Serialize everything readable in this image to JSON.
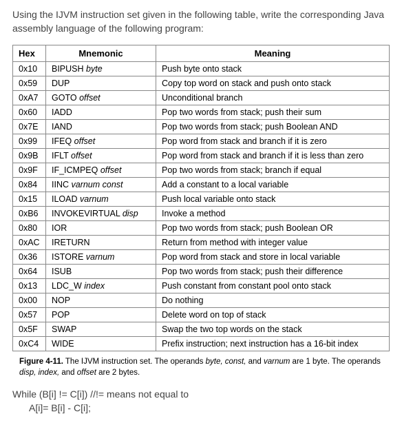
{
  "question": "Using the IJVM instruction set given in the following table, write the corresponding Java assembly language of the following program:",
  "table": {
    "headers": {
      "hex": "Hex",
      "mnemonic": "Mnemonic",
      "meaning": "Meaning"
    },
    "rows": [
      {
        "hex": "0x10",
        "mnemonic_pre": "BIPUSH ",
        "mnemonic_op": "byte",
        "meaning": "Push byte onto stack"
      },
      {
        "hex": "0x59",
        "mnemonic_pre": "DUP",
        "mnemonic_op": "",
        "meaning": "Copy top word on stack and push onto stack"
      },
      {
        "hex": "0xA7",
        "mnemonic_pre": "GOTO ",
        "mnemonic_op": "offset",
        "meaning": "Unconditional branch"
      },
      {
        "hex": "0x60",
        "mnemonic_pre": "IADD",
        "mnemonic_op": "",
        "meaning": "Pop two words from stack; push their sum"
      },
      {
        "hex": "0x7E",
        "mnemonic_pre": "IAND",
        "mnemonic_op": "",
        "meaning": "Pop two words from stack; push Boolean AND"
      },
      {
        "hex": "0x99",
        "mnemonic_pre": "IFEQ ",
        "mnemonic_op": "offset",
        "meaning": "Pop word from stack and branch if it is zero"
      },
      {
        "hex": "0x9B",
        "mnemonic_pre": "IFLT ",
        "mnemonic_op": "offset",
        "meaning": "Pop word from stack and branch if it is less than zero"
      },
      {
        "hex": "0x9F",
        "mnemonic_pre": "IF_ICMPEQ ",
        "mnemonic_op": "offset",
        "meaning": "Pop two words from stack; branch if equal"
      },
      {
        "hex": "0x84",
        "mnemonic_pre": "IINC ",
        "mnemonic_op": "varnum const",
        "meaning": "Add a constant to a local variable"
      },
      {
        "hex": "0x15",
        "mnemonic_pre": "ILOAD ",
        "mnemonic_op": "varnum",
        "meaning": "Push local variable onto stack"
      },
      {
        "hex": "0xB6",
        "mnemonic_pre": "INVOKEVIRTUAL ",
        "mnemonic_op": "disp",
        "meaning": "Invoke a method"
      },
      {
        "hex": "0x80",
        "mnemonic_pre": "IOR",
        "mnemonic_op": "",
        "meaning": "Pop two words from stack; push Boolean OR"
      },
      {
        "hex": "0xAC",
        "mnemonic_pre": "IRETURN",
        "mnemonic_op": "",
        "meaning": "Return from method with integer value"
      },
      {
        "hex": "0x36",
        "mnemonic_pre": "ISTORE ",
        "mnemonic_op": "varnum",
        "meaning": "Pop word from stack and store in local variable"
      },
      {
        "hex": "0x64",
        "mnemonic_pre": "ISUB",
        "mnemonic_op": "",
        "meaning": "Pop two words from stack; push their difference"
      },
      {
        "hex": "0x13",
        "mnemonic_pre": "LDC_W ",
        "mnemonic_op": "index",
        "meaning": "Push constant from constant pool onto stack"
      },
      {
        "hex": "0x00",
        "mnemonic_pre": "NOP",
        "mnemonic_op": "",
        "meaning": "Do nothing"
      },
      {
        "hex": "0x57",
        "mnemonic_pre": "POP",
        "mnemonic_op": "",
        "meaning": "Delete word on top of stack"
      },
      {
        "hex": "0x5F",
        "mnemonic_pre": "SWAP",
        "mnemonic_op": "",
        "meaning": "Swap the two top words on the stack"
      },
      {
        "hex": "0xC4",
        "mnemonic_pre": "WIDE",
        "mnemonic_op": "",
        "meaning": "Prefix instruction; next instruction has a 16-bit index"
      }
    ]
  },
  "caption": {
    "label": "Figure 4-11.",
    "text1": " The IJVM instruction set. The operands ",
    "op1": "byte, const,",
    "text2": " and ",
    "op2": "varnum",
    "text3": " are 1 byte.  The operands ",
    "op3": "disp, index,",
    "text4": " and ",
    "op4": "offset",
    "text5": " are 2 bytes."
  },
  "code": {
    "line1": "While (B[i] != C[i]) //!= means not equal to",
    "line2": "A[i]= B[i] - C[i];"
  }
}
